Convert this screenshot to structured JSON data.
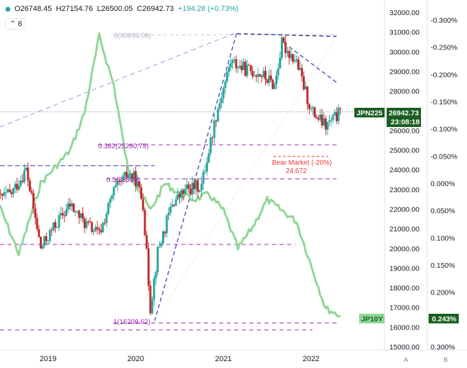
{
  "header": {
    "open": "O26748.45",
    "high": "H27154.76",
    "low": "L26500.05",
    "close": "C26942.73",
    "change": "+194.28 (+0.73%)",
    "indicator_count": "6"
  },
  "colors": {
    "up_candle": "#26a69a",
    "down_candle": "#c62828",
    "jp10y_line": "#8fd694",
    "trend_line": "#3f51b5",
    "fib_line": "#9c27b0",
    "bear_market": "#e53935",
    "price_tag": "#1b5e20"
  },
  "price_tags": {
    "jpn225_symbol": "JPN225",
    "jpn225_price": "26942.73",
    "countdown": "23:08:18",
    "jp10y_symbol": "JP10Y",
    "jp10y_value": "0.243%"
  },
  "annotations": {
    "fib_top": "0(30856.08)",
    "fib_382": "0.382(25260.75)",
    "fib_50": "0.5(23530)",
    "fib_bottom": "1(16208.62)",
    "bear_market_title": "Bear Market (-20%)",
    "bear_market_value": "24,672"
  },
  "axis_letters": {
    "left": "A",
    "right": "B"
  },
  "chart_data": {
    "type": "line",
    "title": "",
    "x_ticks": [
      "2019",
      "2020",
      "2021",
      "2022"
    ],
    "xlim": [
      "2018-06",
      "2022-06"
    ],
    "y_left_label": "JPN225",
    "y_left_ticks": [
      "32000.00",
      "31000.00",
      "30000.00",
      "29000.00",
      "28000.00",
      "27000.00",
      "26000.00",
      "25000.00",
      "24000.00",
      "23000.00",
      "22000.00",
      "21000.00",
      "20000.00",
      "19000.00",
      "18000.00",
      "17000.00",
      "16000.00",
      "15000.00"
    ],
    "y_left_range": [
      15000,
      32000
    ],
    "y_right_ticks": [
      "-0.300%",
      "-0.250%",
      "-0.200%",
      "-0.150%",
      "-0.100%",
      "-0.050%",
      "0.000%",
      "0.050%",
      "0.100%",
      "0.150%",
      "0.200%",
      "0.250%",
      "0.300%"
    ],
    "y_right_range": [
      -0.3,
      0.3
    ],
    "y_right_inverted": true,
    "grid": false,
    "series": [
      {
        "name": "JPN225",
        "style": "candlestick",
        "x": [
          "2018-06",
          "2018-08",
          "2018-10",
          "2018-12",
          "2019-02",
          "2019-04",
          "2019-06",
          "2019-08",
          "2019-10",
          "2019-12",
          "2020-01",
          "2020-02",
          "2020-03",
          "2020-04",
          "2020-06",
          "2020-08",
          "2020-10",
          "2020-12",
          "2021-02",
          "2021-04",
          "2021-06",
          "2021-08",
          "2021-09",
          "2021-11",
          "2022-01",
          "2022-03",
          "2022-05"
        ],
        "values": [
          22500,
          22800,
          24000,
          20000,
          21200,
          22200,
          21300,
          20700,
          22900,
          23800,
          23500,
          22300,
          17000,
          19800,
          22300,
          23000,
          23200,
          26800,
          29500,
          29100,
          28900,
          28300,
          30400,
          29500,
          27000,
          26200,
          26900
        ]
      },
      {
        "name": "JP10Y",
        "style": "line",
        "x": [
          "2018-06",
          "2018-09",
          "2018-12",
          "2019-02",
          "2019-04",
          "2019-06",
          "2019-08",
          "2019-10",
          "2019-12",
          "2020-01",
          "2020-03",
          "2020-05",
          "2020-07",
          "2020-09",
          "2020-11",
          "2021-01",
          "2021-03",
          "2021-05",
          "2021-07",
          "2021-09",
          "2021-11",
          "2022-01",
          "2022-03",
          "2022-05"
        ],
        "values": [
          0.03,
          0.13,
          0.0,
          -0.03,
          -0.06,
          -0.13,
          -0.27,
          -0.18,
          -0.02,
          0.0,
          0.05,
          0.0,
          0.02,
          0.03,
          0.02,
          0.05,
          0.12,
          0.08,
          0.03,
          0.05,
          0.07,
          0.15,
          0.23,
          0.243
        ]
      }
    ],
    "reference_lines": [
      {
        "label": "0(30856.08)",
        "value": 30856.08
      },
      {
        "label": "0.382(25260.75)",
        "value": 25260.75
      },
      {
        "label": "0.5(23530)",
        "value": 23530
      },
      {
        "label": "1(16208.62)",
        "value": 16208.62
      },
      {
        "label": "Bear Market (-20%)",
        "value": 24672
      }
    ]
  }
}
